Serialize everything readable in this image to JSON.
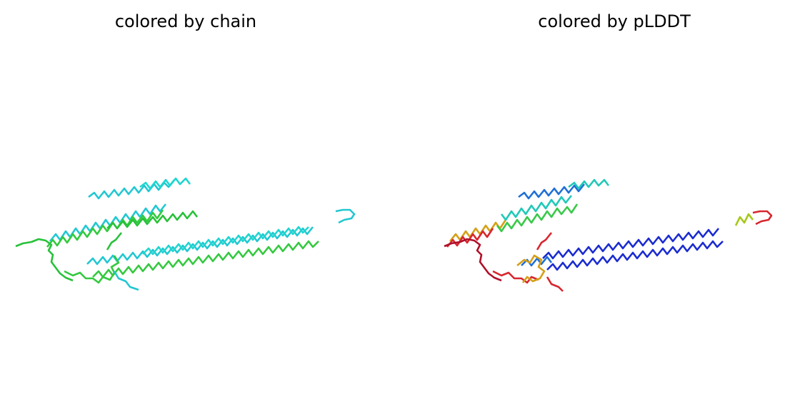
{
  "panels": [
    {
      "title": "colored by chain",
      "coloring": "chain",
      "palette": [
        "#22c7d2",
        "#34c93f",
        "#28c13a",
        "#1fd6d0"
      ]
    },
    {
      "title": "colored by pLDDT",
      "coloring": "pLDDT",
      "palette": [
        "#1a2bd0",
        "#1e6fd6",
        "#21c8b8",
        "#3ac84a",
        "#a6c81a",
        "#d4a017",
        "#d8262e",
        "#b0102a"
      ]
    }
  ]
}
